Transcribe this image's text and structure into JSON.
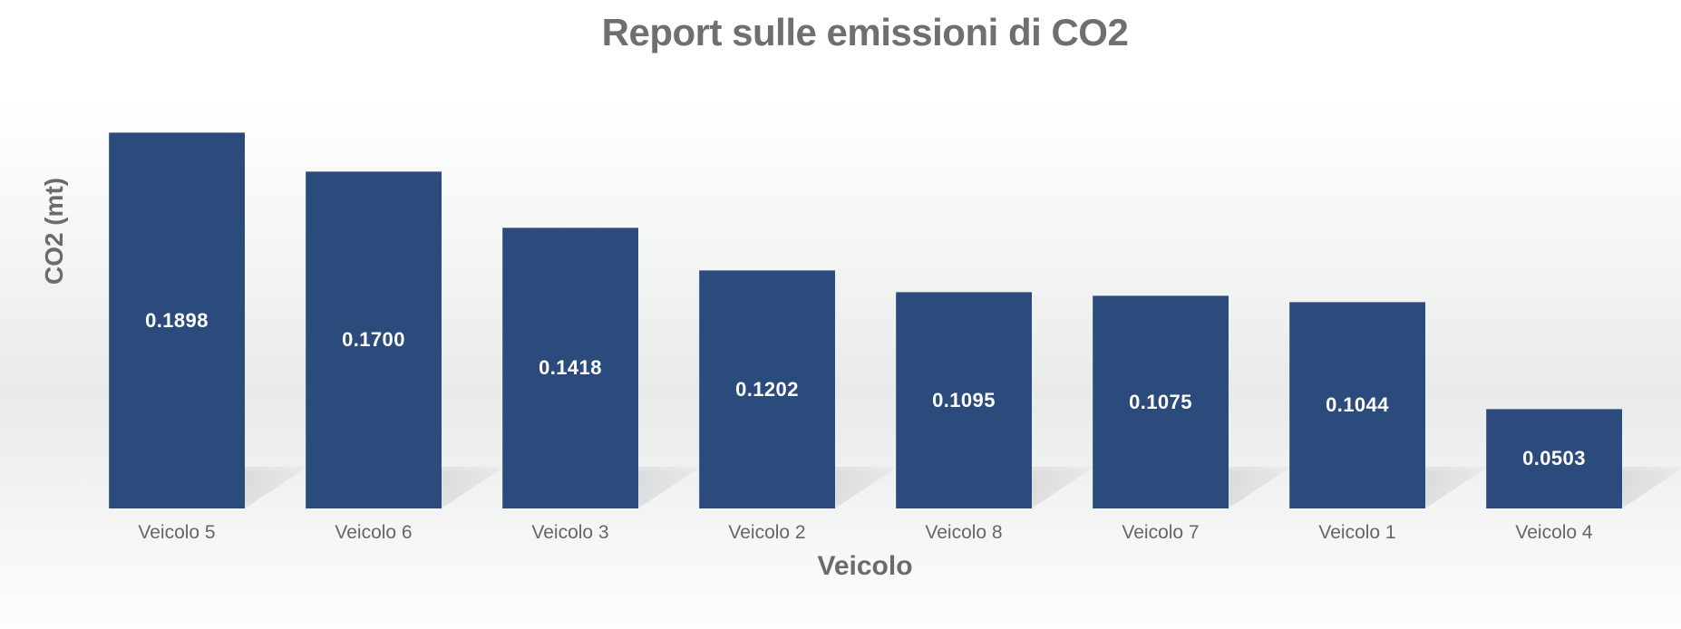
{
  "chart_data": {
    "type": "bar",
    "title": "Report sulle emissioni di CO2",
    "xlabel": "Veicolo",
    "ylabel": "CO2 (mt)",
    "categories": [
      "Veicolo 5",
      "Veicolo 6",
      "Veicolo 3",
      "Veicolo 2",
      "Veicolo 8",
      "Veicolo 7",
      "Veicolo 1",
      "Veicolo 4"
    ],
    "values": [
      0.1898,
      0.17,
      0.1418,
      0.1202,
      0.1095,
      0.1075,
      0.1044,
      0.0503
    ],
    "value_labels": [
      "0.1898",
      "0.1700",
      "0.1418",
      "0.1202",
      "0.1095",
      "0.1075",
      "0.1044",
      "0.0503"
    ],
    "value_label_position": "inside-center",
    "sorted": "descending",
    "ylim": [
      0,
      0.21
    ],
    "grid": false,
    "legend": false,
    "axis_lines": false
  },
  "colors": {
    "bar_color": "#2b4b7c",
    "value_label_color": "#ffffff",
    "title_color": "#6f6f6f",
    "axis_label_color": "#6b6b6b",
    "category_label_color": "#666666",
    "shadow_color": "#9a9da0"
  }
}
